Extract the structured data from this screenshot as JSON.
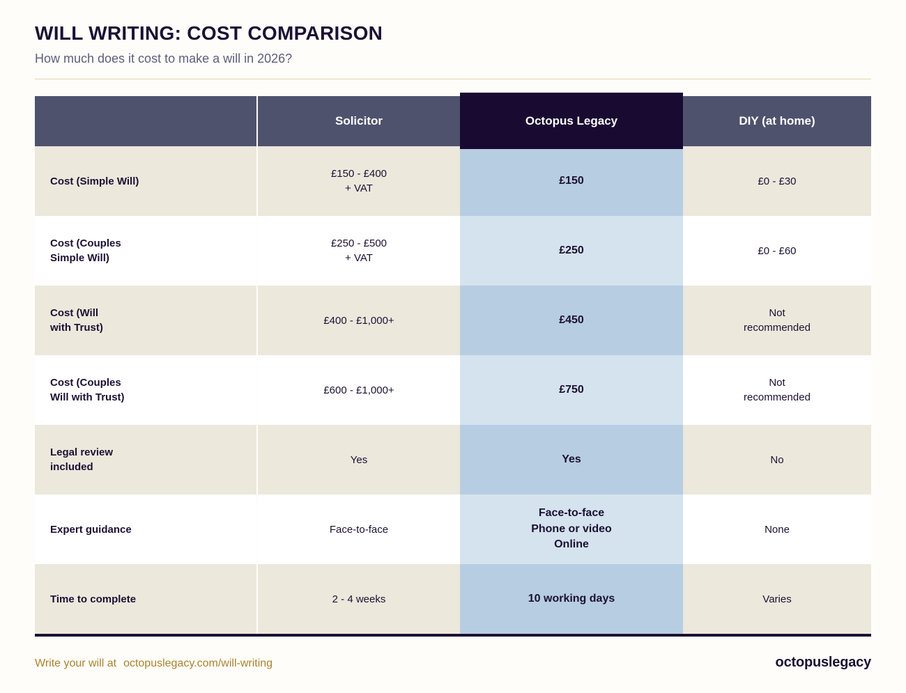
{
  "page": {
    "title": "WILL WRITING: COST COMPARISON",
    "subtitle": "How much does it cost to make a will in 2026?"
  },
  "colors": {
    "header_slate": "#4f526d",
    "header_octopus": "#190a32",
    "row_beige": "#ece8dc",
    "row_white": "#ffffff",
    "octopus_medium_blue": "#b7cde2",
    "octopus_light_blue": "#d4e3ee",
    "text_navy": "#1c1033",
    "accent_gold": "#a9832d"
  },
  "chart_data": {
    "type": "table",
    "title": "WILL WRITING: COST COMPARISON",
    "subtitle": "How much does it cost to make a will in 2026?",
    "columns": [
      "",
      "Solicitor",
      "Octopus Legacy",
      "DIY (at home)"
    ],
    "rows": [
      [
        "Cost (Simple Will)",
        "£150 - £400 + VAT",
        "£150",
        "£0 - £30"
      ],
      [
        "Cost (Couples Simple Will)",
        "£250 - £500 + VAT",
        "£250",
        "£0 - £60"
      ],
      [
        "Cost (Will with Trust)",
        "£400 - £1,000+",
        "£450",
        "Not recommended"
      ],
      [
        "Cost (Couples Will with Trust)",
        "£600 - £1,000+",
        "£750",
        "Not recommended"
      ],
      [
        "Legal review included",
        "Yes",
        "Yes",
        "No"
      ],
      [
        "Expert guidance",
        "Face-to-face",
        "Face-to-face Phone or video Online",
        "None"
      ],
      [
        "Time to complete",
        "2 - 4 weeks",
        "10 working days",
        "Varies"
      ]
    ],
    "highlighted_column": "Octopus Legacy"
  },
  "table": {
    "columns": [
      "",
      "Solicitor",
      "Octopus Legacy",
      "DIY (at home)"
    ],
    "rows": [
      {
        "label": "Cost (Simple Will)",
        "solicitor": "£150 - £400\n+ VAT",
        "octopus": "£150",
        "diy": "£0 - £30"
      },
      {
        "label": "Cost (Couples\nSimple Will)",
        "solicitor": "£250 - £500\n+ VAT",
        "octopus": "£250",
        "diy": "£0 - £60"
      },
      {
        "label": "Cost (Will\nwith Trust)",
        "solicitor": "£400 - £1,000+",
        "octopus": "£450",
        "diy": "Not\nrecommended"
      },
      {
        "label": "Cost (Couples\nWill with Trust)",
        "solicitor": "£600 - £1,000+",
        "octopus": "£750",
        "diy": "Not\nrecommended"
      },
      {
        "label": "Legal review\nincluded",
        "solicitor": "Yes",
        "octopus": "Yes",
        "diy": "No"
      },
      {
        "label": "Expert guidance",
        "solicitor": "Face-to-face",
        "octopus": "Face-to-face\nPhone or video\nOnline",
        "diy": "None"
      },
      {
        "label": "Time to complete",
        "solicitor": "2 - 4 weeks",
        "octopus": "10 working days",
        "diy": "Varies"
      }
    ]
  },
  "footer": {
    "cta_prefix": "Write your will at",
    "cta_link": "octopuslegacy.com/will-writing",
    "brand": "octopuslegacy"
  }
}
